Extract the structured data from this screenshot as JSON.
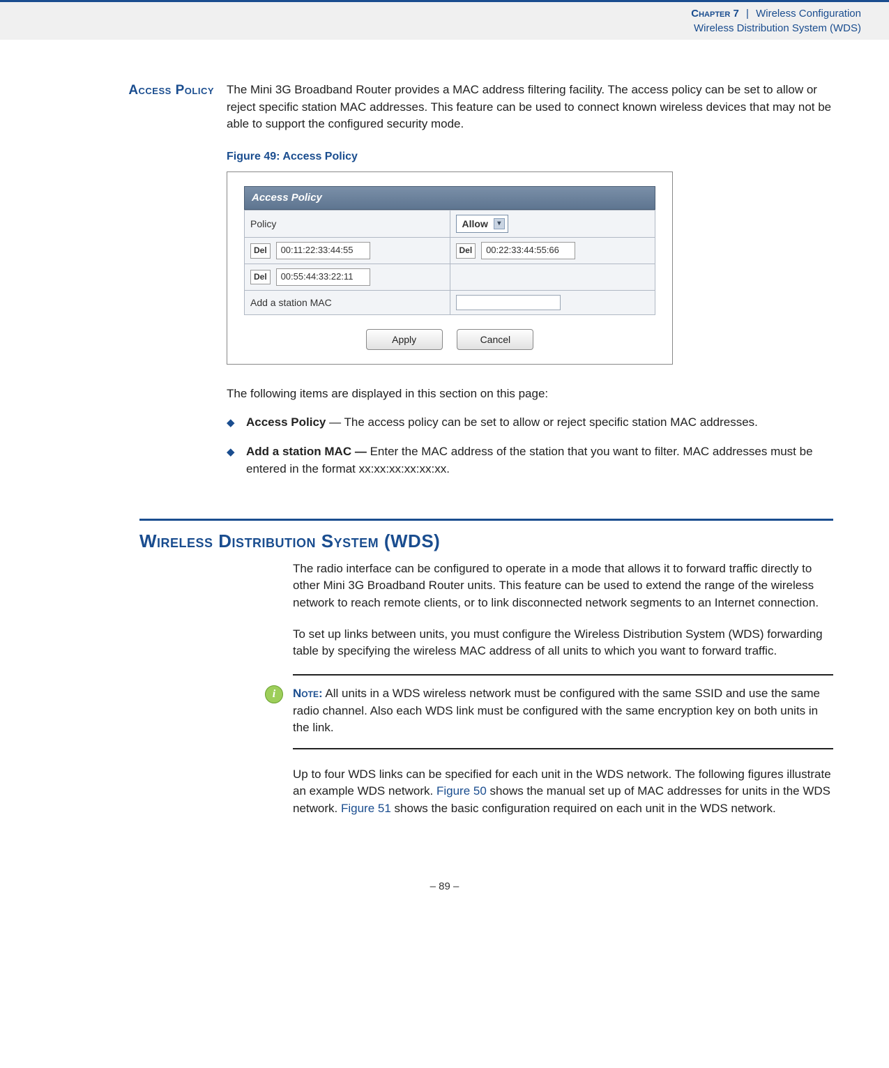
{
  "header": {
    "chapter": "Chapter 7",
    "title1": "Wireless Configuration",
    "title2": "Wireless Distribution System (WDS)"
  },
  "accessPolicy": {
    "sidehead": "Access Policy",
    "intro": "The Mini 3G Broadband Router provides a MAC address filtering facility. The access policy can be set to allow or reject specific station MAC addresses. This feature can be used to connect known wireless devices that may not be able to support the configured security mode.",
    "figCaption": "Figure 49:  Access Policy",
    "panelTitle": "Access Policy",
    "policyLabel": "Policy",
    "policyValue": "Allow",
    "delLabel": "Del",
    "mac1": "00:11:22:33:44:55",
    "mac2": "00:22:33:44:55:66",
    "mac3": "00:55:44:33:22:11",
    "addLabel": "Add a station MAC",
    "applyBtn": "Apply",
    "cancelBtn": "Cancel",
    "afterFig": "The following items are displayed in this section on this page:",
    "bullets": [
      {
        "term": "Access Policy",
        "dash": " — ",
        "text": "The access policy can be set to allow or reject specific station MAC addresses."
      },
      {
        "term": "Add a station MAC — ",
        "dash": "",
        "text": "Enter the MAC address of the station that you want to filter. MAC addresses must be entered in the format xx:xx:xx:xx:xx:xx."
      }
    ]
  },
  "wds": {
    "heading": "Wireless Distribution System (WDS)",
    "p1": "The radio interface can be configured to operate in a mode that allows it to forward traffic directly to other Mini 3G Broadband Router units. This feature can be used to extend the range of the wireless network to reach remote clients, or to link disconnected network segments to an Internet connection.",
    "p2": "To set up links between units, you must configure the Wireless Distribution System (WDS) forwarding table by specifying the wireless MAC address of all units to which you want to forward traffic.",
    "noteLabel": "Note:",
    "noteText": " All units in a WDS wireless network must be configured with the same SSID and use the same radio channel. Also each WDS link must be configured with the same encryption key on both units in the link.",
    "p3a": "Up to four WDS links can be specified for each unit in the WDS network. The following figures illustrate an example WDS network. ",
    "fig50": "Figure 50",
    "p3b": " shows the manual set up of MAC addresses for units in the WDS network. ",
    "fig51": "Figure 51",
    "p3c": " shows the basic configuration required on each unit in the WDS network."
  },
  "footer": {
    "page": "–  89  –"
  }
}
